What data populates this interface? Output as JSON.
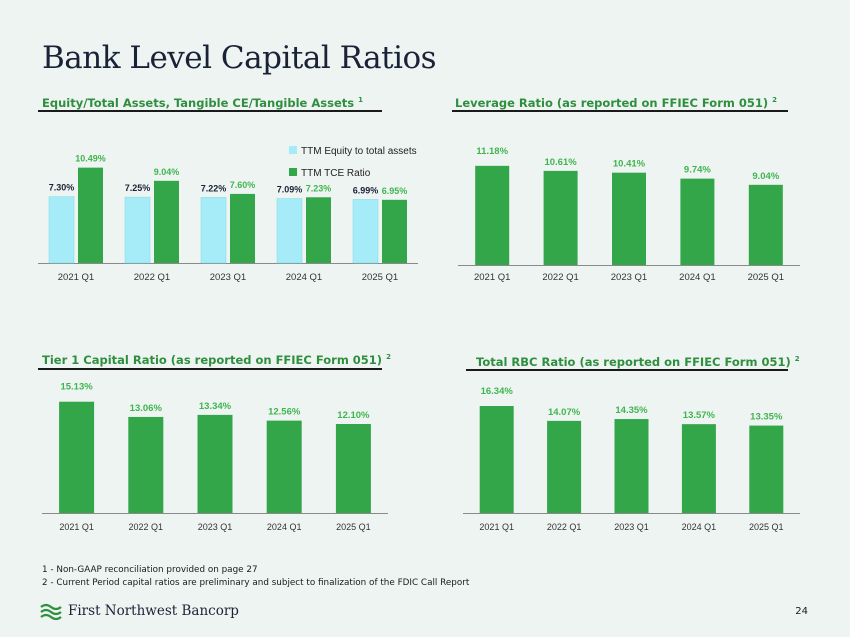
{
  "title": "Bank Level Capital Ratios",
  "panels": {
    "p1": {
      "heading": "Equity/Total Assets, Tangible CE/Tangible Assets",
      "sup": "1"
    },
    "p2": {
      "heading": "Leverage Ratio (as reported on FFIEC Form 051)",
      "sup": "2"
    },
    "p3": {
      "heading": "Tier 1 Capital Ratio (as reported on FFIEC Form 051)",
      "sup": "2"
    },
    "p4": {
      "heading": "Total RBC Ratio (as reported on FFIEC Form 051)",
      "sup": "2"
    }
  },
  "colors": {
    "green": "#34a64a",
    "light_blue": "#a5ecf8",
    "label_green": "#3fb54f",
    "label_dark": "#1a2238"
  },
  "chart_data": [
    {
      "type": "bar",
      "title": "Equity/Total Assets, Tangible CE/Tangible Assets",
      "categories": [
        "2021 Q1",
        "2022 Q1",
        "2023 Q1",
        "2024 Q1",
        "2025 Q1"
      ],
      "series": [
        {
          "name": "TTM Equity to total assets",
          "values": [
            7.3,
            7.25,
            7.22,
            7.09,
            6.99
          ],
          "labels": [
            "7.30%",
            "7.25%",
            "7.22%",
            "7.09%",
            "6.99%"
          ]
        },
        {
          "name": "TTM TCE Ratio",
          "values": [
            10.49,
            9.04,
            7.6,
            7.23,
            6.95
          ],
          "labels": [
            "10.49%",
            "9.04%",
            "7.60%",
            "7.23%",
            "6.95%"
          ]
        }
      ],
      "legend": "top-right",
      "ylim": [
        0,
        11
      ]
    },
    {
      "type": "bar",
      "title": "Leverage Ratio (as reported on FFIEC Form 051)",
      "categories": [
        "2021 Q1",
        "2022 Q1",
        "2023 Q1",
        "2024 Q1",
        "2025 Q1"
      ],
      "values": [
        11.18,
        10.61,
        10.41,
        9.74,
        9.04
      ],
      "labels": [
        "11.18%",
        "10.61%",
        "10.41%",
        "9.74%",
        "9.04%"
      ],
      "ylim": [
        0,
        11.5
      ]
    },
    {
      "type": "bar",
      "title": "Tier 1 Capital Ratio (as reported on FFIEC Form 051)",
      "categories": [
        "2021 Q1",
        "2022 Q1",
        "2023 Q1",
        "2024 Q1",
        "2025 Q1"
      ],
      "values": [
        15.13,
        13.06,
        13.34,
        12.56,
        12.1
      ],
      "labels": [
        "15.13%",
        "13.06%",
        "13.34%",
        "12.56%",
        "12.10%"
      ],
      "ylim": [
        0,
        15.5
      ]
    },
    {
      "type": "bar",
      "title": "Total RBC Ratio (as reported on FFIEC Form 051)",
      "categories": [
        "2021 Q1",
        "2022 Q1",
        "2023 Q1",
        "2024 Q1",
        "2025 Q1"
      ],
      "values": [
        16.34,
        14.07,
        14.35,
        13.57,
        13.35
      ],
      "labels": [
        "16.34%",
        "14.07%",
        "14.35%",
        "13.57%",
        "13.35%"
      ],
      "ylim": [
        0,
        16.8
      ]
    }
  ],
  "footnotes": [
    "1 - Non-GAAP reconciliation provided on page 27",
    "2 - Current Period capital ratios are preliminary and subject to finalization of the FDIC Call Report"
  ],
  "brand": {
    "name": "First Northwest Bancorp",
    "logo_icon": "wave-logo-icon"
  },
  "page_number": "24"
}
